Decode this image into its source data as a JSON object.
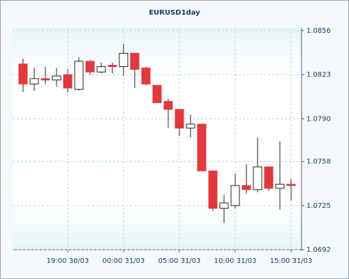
{
  "chart_data": {
    "type": "candlestick",
    "title": "EURUSD1day",
    "categories": [
      null,
      null,
      null,
      null,
      "19:00 30/03",
      null,
      null,
      null,
      null,
      "00:00 31/03",
      null,
      null,
      null,
      null,
      "05:00 31/03",
      null,
      null,
      null,
      null,
      "10:00 31/03",
      null,
      null,
      null,
      null,
      "15:00 31/03"
    ],
    "open": [
      1.0831,
      1.0816,
      1.082,
      1.0819,
      1.0823,
      1.0812,
      1.0833,
      1.0825,
      1.083,
      1.0829,
      1.0839,
      1.0828,
      1.0815,
      1.0803,
      1.0797,
      1.0783,
      1.0786,
      1.0751,
      1.0723,
      1.0725,
      1.074,
      1.0737,
      1.0754,
      1.0738,
      1.0741
    ],
    "high": [
      1.0835,
      1.0828,
      1.0829,
      1.0828,
      1.0827,
      1.0836,
      1.0834,
      1.0832,
      1.0832,
      1.0846,
      1.0839,
      1.0829,
      1.0815,
      1.0805,
      1.0797,
      1.0793,
      1.0786,
      1.0751,
      1.0733,
      1.0749,
      1.0756,
      1.0776,
      1.0754,
      1.0773,
      1.0745
    ],
    "low": [
      1.081,
      1.0811,
      1.0816,
      1.0814,
      1.081,
      1.0811,
      1.0823,
      1.0824,
      1.0824,
      1.0822,
      1.0813,
      1.0815,
      1.0802,
      1.0783,
      1.0777,
      1.0776,
      1.0751,
      1.0721,
      1.0712,
      1.0723,
      1.0734,
      1.0735,
      1.0736,
      1.0722,
      1.0729
    ],
    "close": [
      1.0816,
      1.082,
      1.0819,
      1.0822,
      1.0813,
      1.0833,
      1.0825,
      1.0829,
      1.0829,
      1.0839,
      1.0827,
      1.0816,
      1.0802,
      1.0797,
      1.0783,
      1.0786,
      1.0751,
      1.0723,
      1.0727,
      1.074,
      1.0737,
      1.0754,
      1.0738,
      1.0741,
      1.074
    ],
    "up_color": "#ffffff",
    "down_color": "#e0393e",
    "ylim": [
      1.0692,
      1.0858
    ],
    "yticks": [
      1.0692,
      1.0725,
      1.0758,
      {
        "value": 1.079,
        "label": "1.0790"
      },
      1.0823,
      1.0856
    ],
    "grid": true
  }
}
